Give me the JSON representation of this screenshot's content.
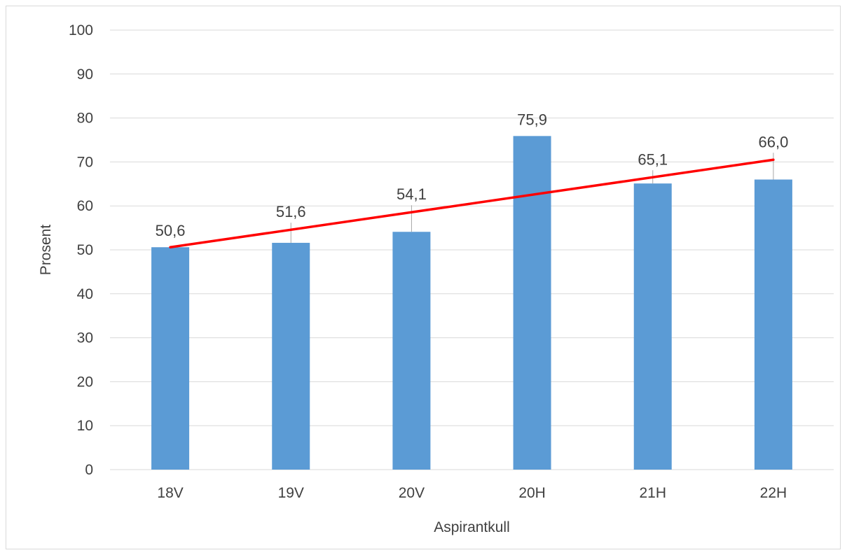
{
  "chart_data": {
    "type": "bar",
    "categories": [
      "18V",
      "19V",
      "20V",
      "20H",
      "21H",
      "22H"
    ],
    "values": [
      50.6,
      51.6,
      54.1,
      75.9,
      65.1,
      66.0
    ],
    "data_labels": [
      "50,6",
      "51,6",
      "54,1",
      "75,9",
      "65,1",
      "66,0"
    ],
    "trendline": {
      "type": "linear",
      "start": 50.6,
      "end": 70.5
    },
    "xlabel": "Aspirantkull",
    "ylabel": "Prosent",
    "ylim": [
      0,
      100
    ],
    "yticks": [
      0,
      10,
      20,
      30,
      40,
      50,
      60,
      70,
      80,
      90,
      100
    ],
    "grid": true,
    "legend": "none",
    "colors": {
      "bar": "#5b9bd5",
      "trendline": "#ff0000",
      "grid": "#d9d9d9",
      "text": "#404040",
      "leader": "#a6a6a6"
    }
  }
}
